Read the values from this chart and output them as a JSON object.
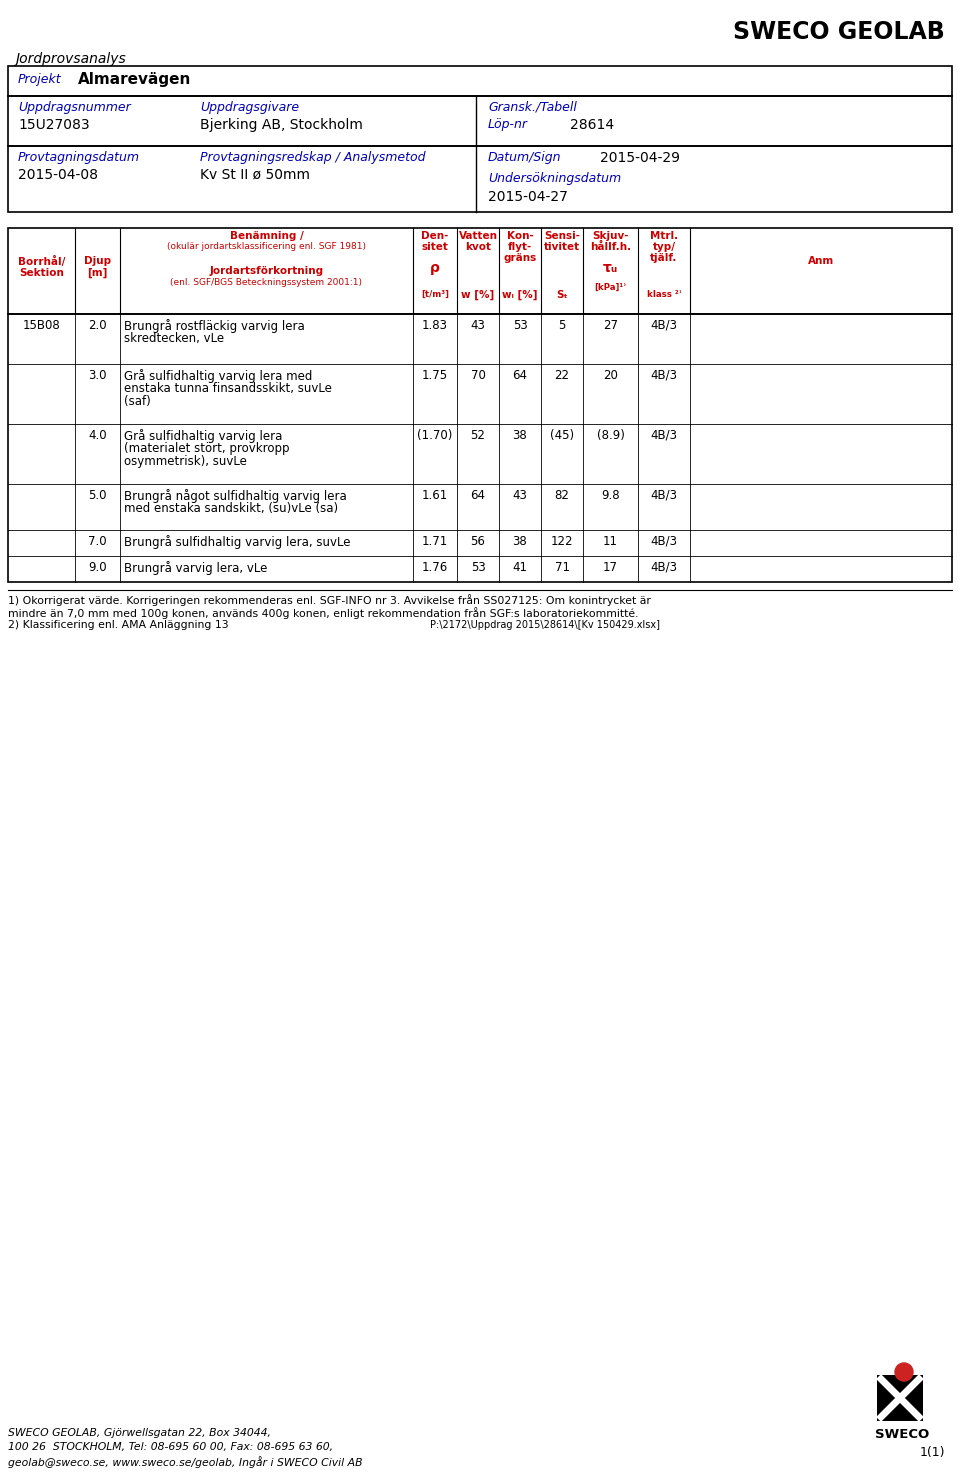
{
  "title_sweco": "SWECO GEOLAB",
  "doc_type": "Jordprovsanalys",
  "projekt_label": "Projekt",
  "projekt_value": "Almarevägen",
  "uppdragsnummer_label": "Uppdragsnummer",
  "uppdragsnummer_value": "15U27083",
  "uppdragsgivare_label": "Uppdragsgivare",
  "uppdragsgivare_value": "Bjerking AB, Stockholm",
  "gransk_label": "Gransk./Tabell",
  "lopnr_label": "Löp-nr",
  "lopnr_value": "28614",
  "provtagningsdatum_label": "Provtagningsdatum",
  "provtagningsdatum_value": "2015-04-08",
  "provtagningsredskap_label": "Provtagningsredskap / Analysmetod",
  "provtagningsredskap_value": "Kv St II ø 50mm",
  "datumsign_label": "Datum/Sign",
  "datumsign_value": "2015-04-29",
  "undersokningsdatum_label": "Undersökningsdatum",
  "undersokningsdatum_value": "2015-04-27",
  "rows": [
    {
      "borr": "15B08",
      "djup": "2.0",
      "benamning": "Brungrå rostfläckig varvig lera\nskredtecken, vLe",
      "densitet": "1.83",
      "vatten": "43",
      "konflyt": "53",
      "sensi": "5",
      "skjuv": "27",
      "mtrl": "4B/3",
      "anm": ""
    },
    {
      "borr": "",
      "djup": "3.0",
      "benamning": "Grå sulfidhaltig varvig lera med\nenstaka tunna finsandsskikt, suvLe\n(saf)",
      "densitet": "1.75",
      "vatten": "70",
      "konflyt": "64",
      "sensi": "22",
      "skjuv": "20",
      "mtrl": "4B/3",
      "anm": ""
    },
    {
      "borr": "",
      "djup": "4.0",
      "benamning": "Grå sulfidhaltig varvig lera\n(materialet stört, provkropp\nosymmetrisk), suvLe",
      "densitet": "(1.70)",
      "vatten": "52",
      "konflyt": "38",
      "sensi": "(45)",
      "skjuv": "(8.9)",
      "mtrl": "4B/3",
      "anm": ""
    },
    {
      "borr": "",
      "djup": "5.0",
      "benamning": "Brungrå något sulfidhaltig varvig lera\nmed enstaka sandskikt, (su)vLe (sa)",
      "densitet": "1.61",
      "vatten": "64",
      "konflyt": "43",
      "sensi": "82",
      "skjuv": "9.8",
      "mtrl": "4B/3",
      "anm": ""
    },
    {
      "borr": "",
      "djup": "7.0",
      "benamning": "Brungrå sulfidhaltig varvig lera, suvLe",
      "densitet": "1.71",
      "vatten": "56",
      "konflyt": "38",
      "sensi": "122",
      "skjuv": "11",
      "mtrl": "4B/3",
      "anm": ""
    },
    {
      "borr": "",
      "djup": "9.0",
      "benamning": "Brungrå varvig lera, vLe",
      "densitet": "1.76",
      "vatten": "53",
      "konflyt": "41",
      "sensi": "71",
      "skjuv": "17",
      "mtrl": "4B/3",
      "anm": ""
    }
  ],
  "footnote1a": "1) Okorrigerat värde. Korrigeringen rekommenderas enl. SGF-INFO nr 3. Avvikelse från SS027125: Om konintrycket är",
  "footnote1b": "mindre än 7,0 mm med 100g konen, används 400g konen, enligt rekommendation från SGF:s laboratoriekommitté.",
  "footnote2": "2) Klassificering enl. AMA Anläggning 13",
  "filepath": "P:\\2172\\Uppdrag 2015\\28614\\[Kv 150429.xlsx]",
  "footer_address1": "SWECO GEOLAB, Gjörwellsgatan 22, Box 34044,",
  "footer_address2": "100 26  STOCKHOLM, Tel: 08-695 60 00, Fax: 08-695 63 60,",
  "footer_address3": "geolab@sweco.se, www.sweco.se/geolab, Ingår i SWECO Civil AB",
  "page_number": "1(1)",
  "blue_color": "#0000BB",
  "red_color": "#CC0000",
  "black": "#000000"
}
